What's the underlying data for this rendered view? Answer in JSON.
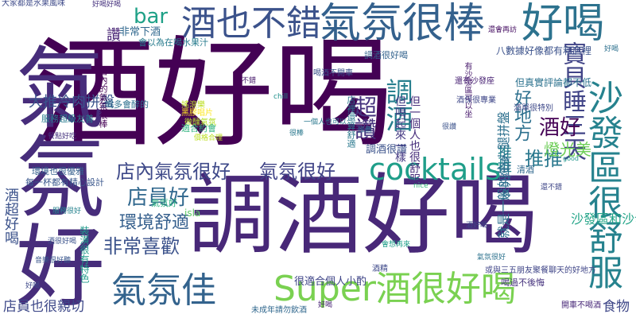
{
  "words": [
    {
      "text": "酒好喝",
      "color": "#440154"
    },
    {
      "text": "調酒好喝",
      "color": "#482878"
    },
    {
      "text": "氣氛好",
      "color": "#472d7b"
    },
    {
      "text": "氣氛很棒",
      "color": "#34618d"
    },
    {
      "text": "酒也不錯",
      "color": "#3b528b"
    },
    {
      "text": "好喝",
      "color": "#2c728e"
    },
    {
      "text": "沙發區很舒服",
      "color": "#26828e"
    },
    {
      "text": "Super酒很好喝",
      "color": "#7ad151"
    },
    {
      "text": "氣氛佳",
      "color": "#33638d"
    },
    {
      "text": "cocktails",
      "color": "#1f9e89"
    },
    {
      "text": "調酒",
      "color": "#277f8e"
    },
    {
      "text": "寶貝睡三天",
      "color": "#414487"
    },
    {
      "text": "店內氣氛很好",
      "color": "#3e4989"
    },
    {
      "text": "氣氛很好",
      "color": "#414487"
    },
    {
      "text": "店員好",
      "color": "#31688e"
    },
    {
      "text": "bar",
      "color": "#1fa187"
    },
    {
      "text": "超讚",
      "color": "#46337e"
    },
    {
      "text": "酒好",
      "color": "#440154"
    },
    {
      "text": "推推",
      "color": "#2a788e"
    },
    {
      "text": "好地方",
      "color": "#2d708e"
    },
    {
      "text": "燈光美",
      "color": "#6ece58"
    },
    {
      "text": "環境舒適",
      "color": "#355f8d"
    },
    {
      "text": "非常喜歡",
      "color": "#3b528b"
    },
    {
      "text": "店員也很親切",
      "color": "#3e4989"
    },
    {
      "text": "食物",
      "color": "#3f4788"
    },
    {
      "text": "酒超好喝",
      "color": "#3b528b"
    },
    {
      "text": "推推",
      "color": "#25848e"
    },
    {
      "text": "裝潢很有特色",
      "color": "#1f9a8a"
    },
    {
      "text": "店裡還算舒適",
      "color": "#2a788e"
    },
    {
      "text": "就是一般的生火腿拼盤",
      "color": "#2d708e"
    },
    {
      "text": "大推冷肉拼盤",
      "color": "#3a548c"
    },
    {
      "text": "很適合個人小酌",
      "color": "#404688"
    },
    {
      "text": "讚",
      "color": "#482475"
    },
    {
      "text": "非常下酒",
      "color": "#31688e"
    },
    {
      "text": "大家都是水果風味",
      "color": "#3e4a89"
    },
    {
      "text": "喝過不後悔",
      "color": "#46337e"
    },
    {
      "text": "氣氛不多",
      "color": "#2e6f8e"
    },
    {
      "text": "清酒",
      "color": "#31688e"
    },
    {
      "text": "氣氛好",
      "color": "#29af7f"
    },
    {
      "text": "調酒很讚",
      "color": "#3b528b"
    },
    {
      "text": "調酒很好喝",
      "color": "#33638d"
    },
    {
      "text": "服務超級友善",
      "color": "#287c8e"
    },
    {
      "text": "每一杯都有精心設計",
      "color": "#39568c"
    },
    {
      "text": "環境也很優雅",
      "color": "#355f8d"
    },
    {
      "text": "沙發區和沙發區",
      "color": "#20a386"
    },
    {
      "text": "但喝起來一樣",
      "color": "#443983"
    },
    {
      "text": "但一個人也很舒服",
      "color": "#472d7b"
    },
    {
      "text": "搖滾樂",
      "color": "#bddf26"
    },
    {
      "text": "黑膠唱片",
      "color": "#fde725"
    },
    {
      "text": "微醺氣氛",
      "color": "#b5de2b"
    },
    {
      "text": "店內的氣氛很棒",
      "color": "#440154"
    },
    {
      "text": "會以為在喝水果汁",
      "color": "#287c8e"
    },
    {
      "text": "八數據好像都有和店裡",
      "color": "#3b528b"
    },
    {
      "text": "但真實評論都不低",
      "color": "#2c728e"
    },
    {
      "text": "有沙發區可以坐",
      "color": "#481a6c"
    },
    {
      "text": "適合約會",
      "color": "#2db27d"
    },
    {
      "text": "酒單很特別",
      "color": "#3e4989"
    },
    {
      "text": "還有沙發座",
      "color": "#482173"
    },
    {
      "text": "喝多會醉的",
      "color": "#2d708e"
    },
    {
      "text": "酒保很專業",
      "color": "#3f4788"
    },
    {
      "text": "或與三五朋友聚餐聊天的好地方",
      "color": "#404688"
    },
    {
      "text": "未成年請勿飲酒",
      "color": "#31688e"
    },
    {
      "text": "開車不喝酒",
      "color": "#482878"
    },
    {
      "text": "喝酒不開車",
      "color": "#3b528b"
    },
    {
      "text": "chill",
      "color": "#21918c"
    },
    {
      "text": "good",
      "color": "#1f968b"
    },
    {
      "text": "isla",
      "color": "#5ec962"
    },
    {
      "text": "nice",
      "color": "#35b779"
    },
    {
      "text": "酒精",
      "color": "#3e4989"
    },
    {
      "text": "一個人也可以",
      "color": "#2a788e"
    },
    {
      "text": "還會再訪",
      "color": "#471063"
    },
    {
      "text": "好喝好喝",
      "color": "#46327e"
    },
    {
      "text": "價格合理",
      "color": "#bddf26"
    },
    {
      "text": "會想再來",
      "color": "#1f9e89"
    },
    {
      "text": "酒很好喝",
      "color": "#3b528b"
    },
    {
      "text": "音樂很好聽",
      "color": "#39568c"
    },
    {
      "text": "服務很好",
      "color": "#26828e"
    },
    {
      "text": "餐點好吃",
      "color": "#46337e"
    },
    {
      "text": "酒好喝",
      "color": "#3f4788"
    },
    {
      "text": "氣氛很好",
      "color": "#2c728e"
    },
    {
      "text": "推薦",
      "color": "#31688e"
    },
    {
      "text": "好喝",
      "color": "#482475"
    },
    {
      "text": "好喝",
      "color": "#2d708e"
    },
    {
      "text": "好喝",
      "color": "#3e4989"
    },
    {
      "text": "不錯",
      "color": "#481b6d"
    },
    {
      "text": "還不錯",
      "color": "#3f4788"
    },
    {
      "text": "很棒",
      "color": "#2a788e"
    },
    {
      "text": "很讚",
      "color": "#3b528b"
    }
  ]
}
